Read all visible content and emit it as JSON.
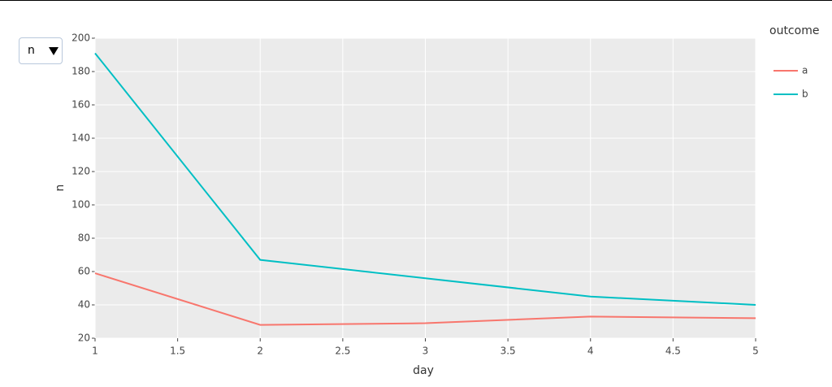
{
  "dropdown": {
    "selected": "n"
  },
  "chart_data": {
    "type": "line",
    "x_label": "day",
    "y_label": "n",
    "legend_title": "outcome",
    "legend": "right",
    "x": [
      1,
      2,
      3,
      4,
      5
    ],
    "series": [
      {
        "name": "a",
        "color": "#F8766D",
        "values": [
          59,
          28,
          29,
          33,
          32
        ]
      },
      {
        "name": "b",
        "color": "#00BFC4",
        "values": [
          191,
          67,
          56,
          45,
          40
        ]
      }
    ],
    "xlim": [
      1,
      5
    ],
    "xticks": [
      1,
      1.5,
      2,
      2.5,
      3,
      3.5,
      4,
      4.5,
      5
    ],
    "ylim": [
      20,
      200
    ],
    "yticks": [
      20,
      40,
      60,
      80,
      100,
      120,
      140,
      160,
      180,
      200
    ],
    "grid": true,
    "background": "#EBEBEB"
  }
}
